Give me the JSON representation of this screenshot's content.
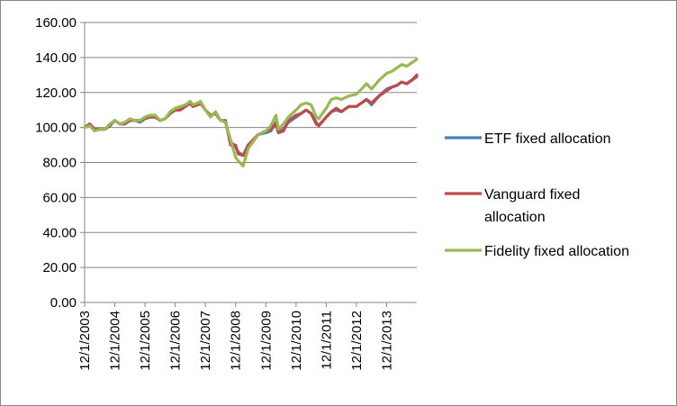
{
  "chart_data": {
    "type": "line",
    "title": "",
    "xlabel": "",
    "ylabel": "",
    "ylim": [
      0,
      160
    ],
    "y_ticks": [
      "0.00",
      "20.00",
      "40.00",
      "60.00",
      "80.00",
      "100.00",
      "120.00",
      "140.00",
      "160.00"
    ],
    "x_ticks": [
      "12/1/2003",
      "12/1/2004",
      "12/1/2005",
      "12/1/2006",
      "12/1/2007",
      "12/1/2008",
      "12/1/2009",
      "12/1/2010",
      "12/1/2011",
      "12/1/2012",
      "12/1/2013"
    ],
    "x_range": [
      "2003-12",
      "2014-12"
    ],
    "grid": "horizontal",
    "legend_position": "right",
    "series": [
      {
        "name": "ETF fixed allocation",
        "color": "#4a7ebb",
        "points": [
          [
            "2003-12",
            100
          ],
          [
            "2004-02",
            102
          ],
          [
            "2004-04",
            99
          ],
          [
            "2004-06",
            99
          ],
          [
            "2004-08",
            99
          ],
          [
            "2004-10",
            101
          ],
          [
            "2004-12",
            104
          ],
          [
            "2005-02",
            102
          ],
          [
            "2005-04",
            102
          ],
          [
            "2005-06",
            104
          ],
          [
            "2005-08",
            104
          ],
          [
            "2005-10",
            103
          ],
          [
            "2005-12",
            105
          ],
          [
            "2006-02",
            106
          ],
          [
            "2006-04",
            106
          ],
          [
            "2006-06",
            104
          ],
          [
            "2006-08",
            105
          ],
          [
            "2006-10",
            108
          ],
          [
            "2006-12",
            110
          ],
          [
            "2007-02",
            110
          ],
          [
            "2007-04",
            112
          ],
          [
            "2007-06",
            114
          ],
          [
            "2007-07",
            112
          ],
          [
            "2007-09",
            113
          ],
          [
            "2007-10",
            114
          ],
          [
            "2007-12",
            110
          ],
          [
            "2008-02",
            107
          ],
          [
            "2008-04",
            108
          ],
          [
            "2008-06",
            104
          ],
          [
            "2008-08",
            103
          ],
          [
            "2008-10",
            92
          ],
          [
            "2008-12",
            89
          ],
          [
            "2009-01",
            86
          ],
          [
            "2009-03",
            84
          ],
          [
            "2009-05",
            90
          ],
          [
            "2009-07",
            93
          ],
          [
            "2009-09",
            96
          ],
          [
            "2009-12",
            97
          ],
          [
            "2010-02",
            98
          ],
          [
            "2010-04",
            103
          ],
          [
            "2010-05",
            98
          ],
          [
            "2010-07",
            99
          ],
          [
            "2010-09",
            103
          ],
          [
            "2010-12",
            106
          ],
          [
            "2011-02",
            108
          ],
          [
            "2011-04",
            110
          ],
          [
            "2011-06",
            108
          ],
          [
            "2011-08",
            103
          ],
          [
            "2011-09",
            101
          ],
          [
            "2011-12",
            106
          ],
          [
            "2012-02",
            109
          ],
          [
            "2012-04",
            110
          ],
          [
            "2012-06",
            109
          ],
          [
            "2012-09",
            112
          ],
          [
            "2012-12",
            112
          ],
          [
            "2013-02",
            114
          ],
          [
            "2013-04",
            116
          ],
          [
            "2013-06",
            113
          ],
          [
            "2013-09",
            118
          ],
          [
            "2013-12",
            122
          ],
          [
            "2014-02",
            123
          ],
          [
            "2014-04",
            124
          ],
          [
            "2014-06",
            126
          ],
          [
            "2014-08",
            125
          ],
          [
            "2014-10",
            127
          ],
          [
            "2014-12",
            129
          ]
        ]
      },
      {
        "name": "Vanguard fixed allocation",
        "color": "#be4b48",
        "points": [
          [
            "2003-12",
            100
          ],
          [
            "2004-02",
            102
          ],
          [
            "2004-04",
            99
          ],
          [
            "2004-06",
            99
          ],
          [
            "2004-08",
            99
          ],
          [
            "2004-10",
            101
          ],
          [
            "2004-12",
            104
          ],
          [
            "2005-02",
            102
          ],
          [
            "2005-04",
            102
          ],
          [
            "2005-06",
            104
          ],
          [
            "2005-08",
            104
          ],
          [
            "2005-10",
            104
          ],
          [
            "2005-12",
            105
          ],
          [
            "2006-02",
            106
          ],
          [
            "2006-04",
            106
          ],
          [
            "2006-06",
            104
          ],
          [
            "2006-08",
            105
          ],
          [
            "2006-10",
            108
          ],
          [
            "2006-12",
            110
          ],
          [
            "2007-02",
            110
          ],
          [
            "2007-04",
            112
          ],
          [
            "2007-06",
            114
          ],
          [
            "2007-07",
            112
          ],
          [
            "2007-09",
            113
          ],
          [
            "2007-10",
            114
          ],
          [
            "2007-12",
            110
          ],
          [
            "2008-02",
            107
          ],
          [
            "2008-04",
            108
          ],
          [
            "2008-06",
            104
          ],
          [
            "2008-08",
            104
          ],
          [
            "2008-10",
            90
          ],
          [
            "2008-12",
            90
          ],
          [
            "2009-01",
            85
          ],
          [
            "2009-03",
            84
          ],
          [
            "2009-05",
            90
          ],
          [
            "2009-07",
            93
          ],
          [
            "2009-09",
            96
          ],
          [
            "2009-12",
            98
          ],
          [
            "2010-02",
            99
          ],
          [
            "2010-04",
            102
          ],
          [
            "2010-05",
            97
          ],
          [
            "2010-07",
            98
          ],
          [
            "2010-09",
            104
          ],
          [
            "2010-12",
            107
          ],
          [
            "2011-02",
            108
          ],
          [
            "2011-04",
            110
          ],
          [
            "2011-06",
            108
          ],
          [
            "2011-08",
            102
          ],
          [
            "2011-09",
            101
          ],
          [
            "2011-12",
            106
          ],
          [
            "2012-02",
            109
          ],
          [
            "2012-04",
            111
          ],
          [
            "2012-06",
            109
          ],
          [
            "2012-09",
            112
          ],
          [
            "2012-12",
            112
          ],
          [
            "2013-02",
            114
          ],
          [
            "2013-04",
            116
          ],
          [
            "2013-06",
            114
          ],
          [
            "2013-09",
            118
          ],
          [
            "2013-12",
            121
          ],
          [
            "2014-02",
            123
          ],
          [
            "2014-04",
            124
          ],
          [
            "2014-06",
            126
          ],
          [
            "2014-08",
            125
          ],
          [
            "2014-10",
            127
          ],
          [
            "2014-12",
            130
          ]
        ]
      },
      {
        "name": "Fidelity fixed allocation",
        "color": "#98b954",
        "points": [
          [
            "2003-12",
            100
          ],
          [
            "2004-02",
            101
          ],
          [
            "2004-04",
            98
          ],
          [
            "2004-06",
            99
          ],
          [
            "2004-08",
            99
          ],
          [
            "2004-10",
            102
          ],
          [
            "2004-12",
            104
          ],
          [
            "2005-02",
            102
          ],
          [
            "2005-04",
            103
          ],
          [
            "2005-06",
            105
          ],
          [
            "2005-08",
            104
          ],
          [
            "2005-10",
            104
          ],
          [
            "2005-12",
            106
          ],
          [
            "2006-02",
            107
          ],
          [
            "2006-04",
            107
          ],
          [
            "2006-06",
            104
          ],
          [
            "2006-08",
            105
          ],
          [
            "2006-10",
            109
          ],
          [
            "2006-12",
            111
          ],
          [
            "2007-02",
            112
          ],
          [
            "2007-04",
            113
          ],
          [
            "2007-06",
            115
          ],
          [
            "2007-07",
            113
          ],
          [
            "2007-09",
            114
          ],
          [
            "2007-10",
            115
          ],
          [
            "2007-12",
            110
          ],
          [
            "2008-02",
            106
          ],
          [
            "2008-04",
            109
          ],
          [
            "2008-06",
            104
          ],
          [
            "2008-08",
            103
          ],
          [
            "2008-10",
            93
          ],
          [
            "2008-12",
            83
          ],
          [
            "2009-01",
            81
          ],
          [
            "2009-03",
            78
          ],
          [
            "2009-05",
            88
          ],
          [
            "2009-07",
            92
          ],
          [
            "2009-09",
            96
          ],
          [
            "2009-12",
            98
          ],
          [
            "2010-02",
            101
          ],
          [
            "2010-04",
            107
          ],
          [
            "2010-05",
            99
          ],
          [
            "2010-07",
            102
          ],
          [
            "2010-09",
            106
          ],
          [
            "2010-12",
            110
          ],
          [
            "2011-02",
            113
          ],
          [
            "2011-04",
            114
          ],
          [
            "2011-06",
            113
          ],
          [
            "2011-08",
            106
          ],
          [
            "2011-09",
            105
          ],
          [
            "2011-12",
            111
          ],
          [
            "2012-02",
            116
          ],
          [
            "2012-04",
            117
          ],
          [
            "2012-06",
            116
          ],
          [
            "2012-09",
            118
          ],
          [
            "2012-12",
            119
          ],
          [
            "2013-02",
            122
          ],
          [
            "2013-04",
            125
          ],
          [
            "2013-06",
            122
          ],
          [
            "2013-09",
            127
          ],
          [
            "2013-12",
            131
          ],
          [
            "2014-02",
            132
          ],
          [
            "2014-04",
            134
          ],
          [
            "2014-06",
            136
          ],
          [
            "2014-08",
            135
          ],
          [
            "2014-10",
            137
          ],
          [
            "2014-12",
            139
          ]
        ]
      }
    ]
  }
}
